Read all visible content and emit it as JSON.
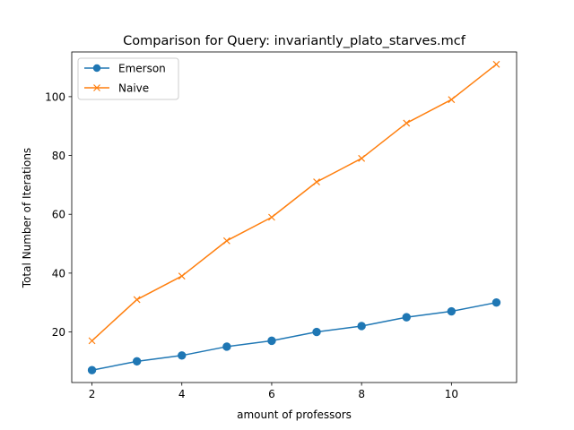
{
  "chart_data": {
    "type": "line",
    "title": "Comparison for Query: invariantly_plato_starves.mcf",
    "xlabel": "amount of professors",
    "ylabel": "Total Number of Iterations",
    "x": [
      2,
      3,
      4,
      5,
      6,
      7,
      8,
      9,
      10,
      11
    ],
    "xlim": [
      1.55,
      11.45
    ],
    "ylim": [
      2.8,
      115.2
    ],
    "xticks": [
      2,
      4,
      6,
      8,
      10
    ],
    "yticks": [
      20,
      40,
      60,
      80,
      100
    ],
    "grid": false,
    "legend_position": "upper-left",
    "series": [
      {
        "name": "Emerson",
        "values": [
          7,
          10,
          12,
          15,
          17,
          20,
          22,
          25,
          27,
          30
        ],
        "color": "#1f77b4",
        "marker": "circle"
      },
      {
        "name": "Naive",
        "values": [
          17,
          31,
          39,
          51,
          59,
          71,
          79,
          91,
          99,
          111
        ],
        "color": "#ff7f0e",
        "marker": "x"
      }
    ]
  }
}
